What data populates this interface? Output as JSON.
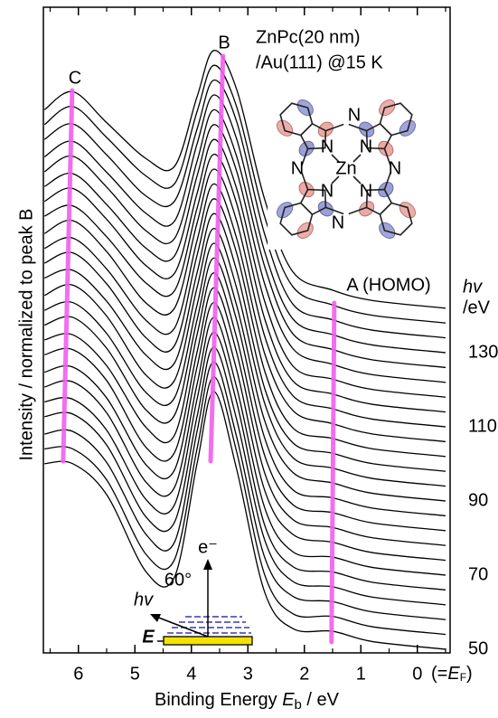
{
  "chart_data": {
    "type": "line",
    "y_label": "Intensity / normalized to peak B",
    "x_label": {
      "text": "Binding Energy ",
      "symbol": "E",
      "sub": "b",
      "unit": " / eV"
    },
    "xlim": [
      6.62,
      -0.58
    ],
    "xticks": [
      6,
      5,
      4,
      3,
      2,
      1,
      0
    ],
    "xminorticks": [
      6.5,
      5.5,
      4.5,
      3.5,
      2.5,
      1.5,
      0.5,
      -0.5
    ],
    "zero_note": {
      "open": "(=",
      "symbol": "E",
      "sub": "F",
      "close": ")"
    },
    "color": "#000000",
    "x": [
      6.6,
      6.1,
      5.5,
      4.8,
      4.3,
      3.9,
      3.6,
      3.2,
      2.7,
      2.2,
      1.5,
      0.8,
      -0.5
    ],
    "series": [
      {
        "hv": 50,
        "values": [
          0.72,
          0.72,
          0.6,
          0.3,
          0.28,
          0.72,
          1,
          0.7,
          0.22,
          0.08,
          0.07,
          0.03,
          0
        ]
      },
      {
        "hv": 54,
        "values": [
          0.72,
          0.72,
          0.6,
          0.31,
          0.29,
          0.72,
          1,
          0.71,
          0.23,
          0.08,
          0.07,
          0.03,
          0
        ]
      },
      {
        "hv": 58,
        "values": [
          0.72,
          0.73,
          0.61,
          0.33,
          0.3,
          0.73,
          1,
          0.71,
          0.24,
          0.09,
          0.07,
          0.03,
          0
        ]
      },
      {
        "hv": 62,
        "values": [
          0.73,
          0.74,
          0.62,
          0.34,
          0.32,
          0.73,
          1,
          0.72,
          0.25,
          0.09,
          0.07,
          0.03,
          0
        ]
      },
      {
        "hv": 66,
        "values": [
          0.73,
          0.74,
          0.62,
          0.35,
          0.33,
          0.74,
          1,
          0.73,
          0.25,
          0.09,
          0.07,
          0.03,
          0
        ]
      },
      {
        "hv": 70,
        "values": [
          0.73,
          0.75,
          0.63,
          0.36,
          0.34,
          0.74,
          1,
          0.73,
          0.26,
          0.09,
          0.07,
          0.03,
          0
        ]
      },
      {
        "hv": 74,
        "values": [
          0.73,
          0.75,
          0.63,
          0.37,
          0.35,
          0.75,
          1,
          0.74,
          0.27,
          0.1,
          0.07,
          0.03,
          0
        ]
      },
      {
        "hv": 78,
        "values": [
          0.74,
          0.76,
          0.64,
          0.38,
          0.36,
          0.75,
          1,
          0.75,
          0.28,
          0.1,
          0.07,
          0.03,
          0
        ]
      },
      {
        "hv": 82,
        "values": [
          0.74,
          0.76,
          0.64,
          0.4,
          0.37,
          0.76,
          1,
          0.75,
          0.29,
          0.1,
          0.07,
          0.03,
          0
        ]
      },
      {
        "hv": 86,
        "values": [
          0.74,
          0.77,
          0.65,
          0.41,
          0.39,
          0.76,
          1,
          0.76,
          0.3,
          0.1,
          0.07,
          0.03,
          0
        ]
      },
      {
        "hv": 90,
        "values": [
          0.74,
          0.77,
          0.65,
          0.42,
          0.4,
          0.76,
          1,
          0.76,
          0.31,
          0.11,
          0.07,
          0.03,
          0
        ]
      },
      {
        "hv": 94,
        "values": [
          0.74,
          0.78,
          0.66,
          0.43,
          0.41,
          0.77,
          1,
          0.77,
          0.32,
          0.11,
          0.07,
          0.03,
          0
        ]
      },
      {
        "hv": 98,
        "values": [
          0.75,
          0.78,
          0.66,
          0.45,
          0.42,
          0.77,
          1,
          0.78,
          0.32,
          0.11,
          0.07,
          0.03,
          0
        ]
      },
      {
        "hv": 102,
        "values": [
          0.75,
          0.79,
          0.67,
          0.46,
          0.43,
          0.78,
          1,
          0.79,
          0.33,
          0.11,
          0.07,
          0.03,
          0
        ]
      },
      {
        "hv": 106,
        "values": [
          0.75,
          0.79,
          0.67,
          0.47,
          0.44,
          0.78,
          1,
          0.79,
          0.34,
          0.12,
          0.07,
          0.03,
          0
        ]
      },
      {
        "hv": 110,
        "values": [
          0.75,
          0.8,
          0.68,
          0.48,
          0.46,
          0.79,
          1,
          0.8,
          0.35,
          0.12,
          0.07,
          0.03,
          0
        ]
      },
      {
        "hv": 114,
        "values": [
          0.76,
          0.8,
          0.68,
          0.5,
          0.47,
          0.79,
          1,
          0.81,
          0.36,
          0.12,
          0.07,
          0.03,
          0
        ]
      },
      {
        "hv": 118,
        "values": [
          0.76,
          0.81,
          0.69,
          0.51,
          0.48,
          0.79,
          1,
          0.81,
          0.37,
          0.12,
          0.07,
          0.03,
          0
        ]
      },
      {
        "hv": 122,
        "values": [
          0.76,
          0.81,
          0.69,
          0.52,
          0.49,
          0.8,
          1,
          0.82,
          0.38,
          0.13,
          0.07,
          0.03,
          0
        ]
      },
      {
        "hv": 126,
        "values": [
          0.76,
          0.82,
          0.7,
          0.53,
          0.5,
          0.8,
          1,
          0.82,
          0.39,
          0.13,
          0.07,
          0.03,
          0
        ]
      },
      {
        "hv": 130,
        "values": [
          0.76,
          0.82,
          0.7,
          0.54,
          0.51,
          0.81,
          1,
          0.83,
          0.39,
          0.13,
          0.07,
          0.03,
          0
        ]
      },
      {
        "hv": 134,
        "values": [
          0.77,
          0.83,
          0.71,
          0.55,
          0.53,
          0.81,
          1,
          0.84,
          0.4,
          0.13,
          0.07,
          0.03,
          0
        ]
      },
      {
        "hv": 138,
        "values": [
          0.77,
          0.84,
          0.72,
          0.57,
          0.54,
          0.82,
          1,
          0.84,
          0.41,
          0.14,
          0.07,
          0.03,
          0
        ]
      },
      {
        "hv": 142,
        "values": [
          0.77,
          0.84,
          0.72,
          0.58,
          0.55,
          0.82,
          1,
          0.85,
          0.42,
          0.14,
          0.07,
          0.03,
          0
        ]
      }
    ],
    "hv_axis": {
      "symbol": "hv",
      "unit": "/eV",
      "ticks": [
        50,
        70,
        90,
        110,
        130
      ]
    },
    "guide_color": "#f060ee",
    "guides": [
      {
        "label": "C",
        "x": [
          6.27,
          6.11
        ]
      },
      {
        "label": "B",
        "x": [
          3.66,
          3.44
        ]
      },
      {
        "label": "A (HOMO)",
        "x": [
          1.52,
          1.47
        ]
      }
    ],
    "sample": [
      "ZnPc(20 nm)",
      "/Au(111) @15 K"
    ],
    "molecule": {
      "metal": "Zn",
      "nitrogen": "N"
    },
    "geometry": {
      "angle": "60°",
      "photon": "hv",
      "electron": "e⁻",
      "field": "E"
    }
  }
}
